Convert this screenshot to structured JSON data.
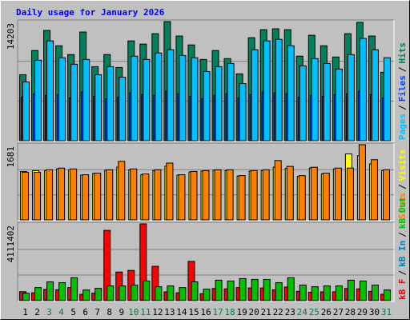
{
  "chart_data": [
    {
      "type": "bar",
      "title": "Daily usage for January 2026",
      "series": [
        {
          "name": "Hits",
          "color": "#00805c",
          "values": [
            7870,
            10750,
            13150,
            11320,
            10270,
            12960,
            8830,
            10270,
            8730,
            11900,
            11520,
            12760,
            14203,
            12480,
            11420,
            9690,
            10750,
            9790,
            7970,
            12280,
            13240,
            13340,
            13240,
            10080,
            12570,
            11320,
            9980,
            12760,
            14110,
            12480,
            8160
          ]
        },
        {
          "name": "Files",
          "color": "#0040ff",
          "values": [
            5200,
            5600,
            5400,
            5500,
            5100,
            5800,
            5300,
            5000,
            5200,
            5700,
            5500,
            5400,
            5900,
            5600,
            5300,
            5000,
            5400,
            5600,
            5100,
            5500,
            5800,
            5700,
            5600,
            5200,
            5400,
            5300,
            5500,
            5600,
            5900,
            5500,
            5100
          ]
        },
        {
          "name": "Pages",
          "color": "#00c0ff",
          "values": [
            7010,
            9600,
            11900,
            9890,
            9120,
            9690,
            7870,
            8830,
            7580,
            10080,
            9690,
            10460,
            10850,
            10170,
            9890,
            8250,
            8830,
            9210,
            6810,
            10850,
            11900,
            12090,
            11320,
            8930,
            9790,
            9210,
            8540,
            10270,
            12190,
            10850,
            9890
          ]
        }
      ],
      "ylim": [
        0,
        14203
      ],
      "yticks": [
        14203
      ],
      "legend_separator": "/",
      "legend_reversed": true
    },
    {
      "type": "bar",
      "series": [
        {
          "name": "Visits",
          "color": "#ffff00",
          "values": [
            1080,
            1102,
            1100,
            1140,
            1120,
            1000,
            1040,
            1110,
            1180,
            1120,
            1010,
            1100,
            1200,
            1000,
            1070,
            1090,
            1110,
            1100,
            980,
            1090,
            1100,
            1180,
            1150,
            970,
            1160,
            1030,
            1140,
            1475,
            1434,
            1250,
            1100
          ]
        },
        {
          "name": "Sites",
          "color": "#ff8000",
          "values": [
            1065,
            1065,
            1121,
            1158,
            1139,
            1009,
            1046,
            1121,
            1308,
            1139,
            1027,
            1121,
            1270,
            1009,
            1083,
            1102,
            1121,
            1121,
            990,
            1102,
            1121,
            1326,
            1196,
            990,
            1177,
            1046,
            1158,
            1158,
            1681,
            1345,
            1121
          ]
        }
      ],
      "ylim": [
        0,
        1681
      ],
      "yticks": [
        1681
      ],
      "legend_separator": "/",
      "legend_reversed": true
    },
    {
      "type": "bar",
      "categories": [
        "1",
        "2",
        "3",
        "4",
        "5",
        "6",
        "7",
        "8",
        "9",
        "10",
        "11",
        "12",
        "13",
        "14",
        "15",
        "16",
        "17",
        "18",
        "19",
        "20",
        "21",
        "22",
        "23",
        "24",
        "25",
        "26",
        "27",
        "28",
        "29",
        "30",
        "31"
      ],
      "category_colors": [
        "#000000",
        "#000000",
        "#008040",
        "#008040",
        "#000000",
        "#000000",
        "#000000",
        "#000000",
        "#000000",
        "#008040",
        "#008040",
        "#000000",
        "#000000",
        "#000000",
        "#000000",
        "#000000",
        "#008040",
        "#008040",
        "#000000",
        "#000000",
        "#000000",
        "#000000",
        "#000000",
        "#008040",
        "#008040",
        "#000000",
        "#000000",
        "#000000",
        "#000000",
        "#000000",
        "#008040"
      ],
      "series": [
        {
          "name": "kB F",
          "color": "#ff0000",
          "values": [
            481000,
            420000,
            600000,
            580000,
            700000,
            340000,
            400000,
            3762000,
            1531000,
            1618000,
            4111402,
            1837000,
            470000,
            420000,
            2100000,
            370000,
            650000,
            630000,
            700000,
            680000,
            680000,
            580000,
            730000,
            500000,
            450000,
            470000,
            470000,
            650000,
            630000,
            500000,
            340000
          ]
        },
        {
          "name": "kB In",
          "color": "#0080c0",
          "values": [
            30000,
            32000,
            35000,
            34000,
            36000,
            28000,
            30000,
            31000,
            31000,
            32000,
            35000,
            31000,
            31000,
            30000,
            34000,
            29000,
            35000,
            35000,
            36000,
            36000,
            36000,
            34000,
            37000,
            32000,
            31000,
            31000,
            31000,
            35000,
            35000,
            32000,
            28000
          ]
        },
        {
          "name": "kB Out",
          "color": "#00c000",
          "values": [
            394000,
            700000,
            1006000,
            962000,
            1225000,
            569000,
            656000,
            787000,
            787000,
            831000,
            1050000,
            744000,
            787000,
            700000,
            1006000,
            612000,
            1094000,
            1050000,
            1181000,
            1137000,
            1137000,
            962000,
            1225000,
            831000,
            744000,
            787000,
            787000,
            1094000,
            1050000,
            831000,
            569000
          ]
        }
      ],
      "ylim": [
        0,
        4111402
      ],
      "yticks": [
        4111402
      ],
      "legend_separator": "/",
      "legend_reversed": false
    }
  ]
}
